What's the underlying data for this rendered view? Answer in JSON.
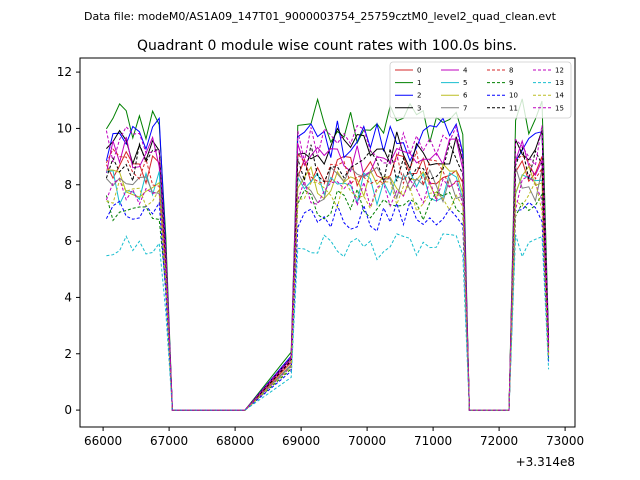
{
  "figure": {
    "suptitle": "Data file: modeM0/AS1A09_147T01_9000003754_25759cztM0_level2_quad_clean.evt",
    "title": "Quadrant 0 module wise count rates with 100.0s bins.",
    "offset_text": "+3.314e8"
  },
  "chart_data": {
    "type": "line",
    "title": "Quadrant 0 module wise count rates with 100.0s bins.",
    "x_offset": 331400000,
    "xlim": [
      65650,
      73150
    ],
    "ylim": [
      -0.6,
      12.5
    ],
    "x_ticks": [
      66000,
      67000,
      68000,
      69000,
      70000,
      71000,
      72000,
      73000
    ],
    "x_tick_labels": [
      "66000",
      "67000",
      "68000",
      "69000",
      "70000",
      "71000",
      "72000",
      "73000"
    ],
    "y_ticks": [
      0,
      2,
      4,
      6,
      8,
      10,
      12
    ],
    "y_tick_labels": [
      "0",
      "2",
      "4",
      "6",
      "8",
      "10",
      "12"
    ],
    "legend_location": "upper right",
    "legend_columns": 4,
    "segments": [
      {
        "x_start": 66050,
        "x_step": 100,
        "count": 10
      },
      {
        "x_start": 67050,
        "x_step": 100,
        "count": 12
      },
      {
        "x_start": 68850,
        "x_step": 100,
        "count": 27
      },
      {
        "x_start": 71550,
        "x_step": 100,
        "count": 7
      },
      {
        "x_start": 72250,
        "x_step": 100,
        "count": 6
      }
    ],
    "series": [
      {
        "name": "0",
        "color": "#d62728",
        "style": "solid",
        "level": 8.5
      },
      {
        "name": "1",
        "color": "#008000",
        "style": "solid",
        "level": 10.3
      },
      {
        "name": "2",
        "color": "#0000ff",
        "style": "solid",
        "level": 9.6
      },
      {
        "name": "3",
        "color": "#000000",
        "style": "solid",
        "level": 9.3
      },
      {
        "name": "4",
        "color": "#bf00bf",
        "style": "solid",
        "level": 9.0
      },
      {
        "name": "5",
        "color": "#17becf",
        "style": "solid",
        "level": 7.9
      },
      {
        "name": "6",
        "color": "#bcbd22",
        "style": "solid",
        "level": 8.1
      },
      {
        "name": "7",
        "color": "#7f7f7f",
        "style": "solid",
        "level": 8.0
      },
      {
        "name": "8",
        "color": "#d62728",
        "style": "dashed",
        "level": 8.6
      },
      {
        "name": "9",
        "color": "#008000",
        "style": "dashed",
        "level": 7.3
      },
      {
        "name": "10",
        "color": "#0000ff",
        "style": "dashed",
        "level": 6.9
      },
      {
        "name": "11",
        "color": "#000000",
        "style": "dashed",
        "level": 8.8
      },
      {
        "name": "12",
        "color": "#bf00bf",
        "style": "dashed",
        "level": 7.7
      },
      {
        "name": "13",
        "color": "#17becf",
        "style": "dashed",
        "level": 5.8
      },
      {
        "name": "14",
        "color": "#bcbd22",
        "style": "dashed",
        "level": 7.6
      },
      {
        "name": "15",
        "color": "#bf00bf",
        "style": "dashed",
        "level": 9.4
      }
    ]
  }
}
